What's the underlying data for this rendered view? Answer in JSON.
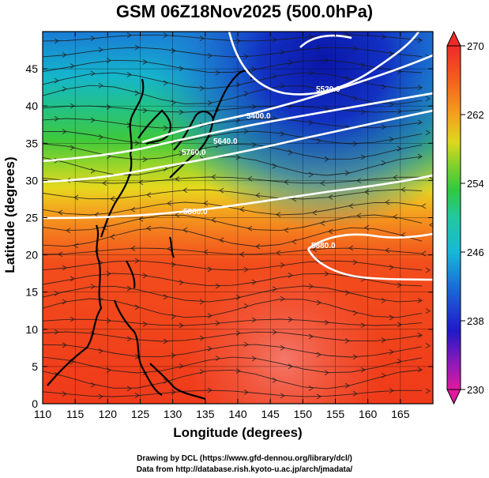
{
  "title": "GSM 06Z18Nov2025 (500.0hPa)",
  "xlabel": "Longitude (degrees)",
  "ylabel": "Latitude  (degrees)",
  "credits": [
    "Drawing by DCL (https://www.gfd-dennou.org/library/dcl/)",
    "Data from http://database.rish.kyoto-u.ac.jp/arch/jmadata/"
  ],
  "map": {
    "lon_range": [
      110,
      170
    ],
    "lat_range": [
      0,
      50
    ],
    "lon_ticks": [
      "110",
      "115",
      "120",
      "125",
      "130",
      "135",
      "140",
      "145",
      "150",
      "155",
      "160",
      "165"
    ],
    "lat_ticks": [
      "0",
      "5",
      "10",
      "15",
      "20",
      "25",
      "30",
      "35",
      "40",
      "45"
    ],
    "colorbar": {
      "min": 230,
      "max": 270,
      "labels": [
        "270",
        "262",
        "254",
        "246",
        "238",
        "230"
      ]
    },
    "contour_labels": [
      "5880.0",
      "5640.0",
      "5400.0",
      "5520.0",
      "5760.0",
      "5880.0"
    ]
  }
}
